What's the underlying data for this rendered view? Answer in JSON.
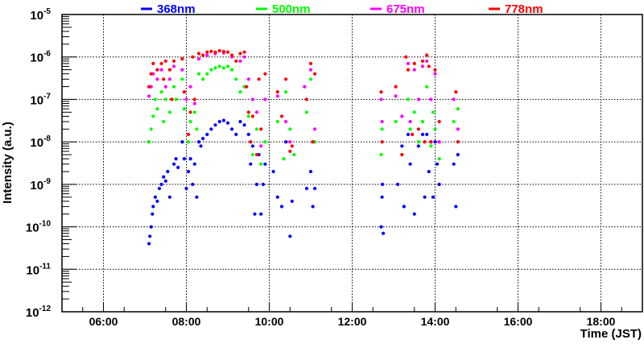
{
  "chart_data": {
    "type": "scatter",
    "title": "",
    "xlabel": "Time (JST)",
    "ylabel": "Intensity (a.u.)",
    "xlim": [
      5,
      19
    ],
    "ylim": [
      1e-12,
      1e-05
    ],
    "yscale": "log",
    "grid": true,
    "legend_placement": "top",
    "x_ticks": [
      {
        "v": 6,
        "label": "06:00"
      },
      {
        "v": 8,
        "label": "08:00"
      },
      {
        "v": 10,
        "label": "10:00"
      },
      {
        "v": 12,
        "label": "12:00"
      },
      {
        "v": 14,
        "label": "14:00"
      },
      {
        "v": 16,
        "label": "16:00"
      },
      {
        "v": 18,
        "label": "18:00"
      }
    ],
    "y_ticks": [
      {
        "exp": -12,
        "base": "10",
        "sup": "-12"
      },
      {
        "exp": -11,
        "base": "10",
        "sup": "-11"
      },
      {
        "exp": -10,
        "base": "10",
        "sup": "-10"
      },
      {
        "exp": -9,
        "base": "10",
        "sup": "-9"
      },
      {
        "exp": -8,
        "base": "10",
        "sup": "-8"
      },
      {
        "exp": -7,
        "base": "10",
        "sup": "-7"
      },
      {
        "exp": -6,
        "base": "10",
        "sup": "-6"
      },
      {
        "exp": -5,
        "base": "10",
        "sup": "-5"
      }
    ],
    "series": [
      {
        "name": "368nm",
        "color": "#0000ff",
        "points": [
          [
            7.1,
            4e-11
          ],
          [
            7.12,
            6e-11
          ],
          [
            7.15,
            1e-10
          ],
          [
            7.18,
            2e-10
          ],
          [
            7.2,
            3e-10
          ],
          [
            7.25,
            5e-10
          ],
          [
            7.3,
            4e-10
          ],
          [
            7.35,
            8e-10
          ],
          [
            7.4,
            1e-09
          ],
          [
            7.45,
            1.5e-09
          ],
          [
            7.5,
            1.2e-09
          ],
          [
            7.55,
            2e-09
          ],
          [
            7.6,
            5e-10
          ],
          [
            7.7,
            3e-09
          ],
          [
            7.75,
            4e-09
          ],
          [
            7.8,
            2.5e-09
          ],
          [
            7.9,
            1e-08
          ],
          [
            7.95,
            4e-09
          ],
          [
            8.0,
            8e-10
          ],
          [
            8.05,
            2e-09
          ],
          [
            8.1,
            4e-09
          ],
          [
            8.15,
            1e-09
          ],
          [
            8.2,
            3e-09
          ],
          [
            8.25,
            5e-10
          ],
          [
            8.3,
            1e-08
          ],
          [
            8.35,
            8e-09
          ],
          [
            8.4,
            1.2e-08
          ],
          [
            8.5,
            1.5e-08
          ],
          [
            8.6,
            2e-08
          ],
          [
            8.7,
            2.5e-08
          ],
          [
            8.8,
            3e-08
          ],
          [
            8.9,
            3.2e-08
          ],
          [
            9.0,
            2.8e-08
          ],
          [
            9.1,
            2e-08
          ],
          [
            9.2,
            1.5e-08
          ],
          [
            9.3,
            3e-08
          ],
          [
            9.4,
            2.5e-08
          ],
          [
            9.5,
            1.5e-08
          ],
          [
            9.55,
            3e-09
          ],
          [
            9.6,
            8e-09
          ],
          [
            9.65,
            2e-10
          ],
          [
            9.7,
            1e-09
          ],
          [
            9.75,
            5e-09
          ],
          [
            9.8,
            2e-10
          ],
          [
            9.85,
            1e-09
          ],
          [
            9.9,
            3e-09
          ],
          [
            10.1,
            2e-09
          ],
          [
            10.2,
            5e-10
          ],
          [
            10.3,
            3e-10
          ],
          [
            10.4,
            1e-08
          ],
          [
            10.5,
            6e-11
          ],
          [
            10.55,
            4e-10
          ],
          [
            10.9,
            8e-10
          ],
          [
            11.0,
            2e-09
          ],
          [
            11.05,
            3e-10
          ],
          [
            11.1,
            8e-10
          ],
          [
            12.7,
            1e-10
          ],
          [
            12.72,
            5e-10
          ],
          [
            12.75,
            7e-11
          ],
          [
            12.73,
            1e-09
          ],
          [
            13.1,
            1e-09
          ],
          [
            13.2,
            8e-09
          ],
          [
            13.25,
            3e-10
          ],
          [
            13.35,
            1.5e-08
          ],
          [
            13.4,
            3e-09
          ],
          [
            13.5,
            2e-10
          ],
          [
            13.6,
            8e-09
          ],
          [
            13.7,
            1.5e-08
          ],
          [
            13.75,
            5e-10
          ],
          [
            13.8,
            1.5e-08
          ],
          [
            13.85,
            2e-09
          ],
          [
            13.9,
            1e-08
          ],
          [
            13.95,
            5e-10
          ],
          [
            14.0,
            1e-08
          ],
          [
            14.05,
            3e-09
          ],
          [
            14.1,
            1e-09
          ],
          [
            14.45,
            3e-09
          ],
          [
            14.5,
            3e-10
          ],
          [
            14.55,
            5e-09
          ]
        ]
      },
      {
        "name": "500nm",
        "color": "#00ff00",
        "points": [
          [
            7.1,
            1e-08
          ],
          [
            7.15,
            2e-08
          ],
          [
            7.2,
            4e-08
          ],
          [
            7.25,
            1e-07
          ],
          [
            7.3,
            6e-08
          ],
          [
            7.4,
            1.5e-07
          ],
          [
            7.45,
            3e-08
          ],
          [
            7.5,
            1e-07
          ],
          [
            7.6,
            5e-08
          ],
          [
            7.7,
            2e-07
          ],
          [
            7.75,
            1e-07
          ],
          [
            7.9,
            3e-07
          ],
          [
            7.95,
            6e-08
          ],
          [
            8.05,
            1e-08
          ],
          [
            8.1,
            3e-08
          ],
          [
            8.2,
            5e-08
          ],
          [
            8.25,
            2e-08
          ],
          [
            8.3,
            4e-07
          ],
          [
            8.4,
            3e-07
          ],
          [
            8.5,
            4e-07
          ],
          [
            8.6,
            5e-07
          ],
          [
            8.7,
            5.5e-07
          ],
          [
            8.8,
            6e-07
          ],
          [
            8.9,
            5.5e-07
          ],
          [
            9.0,
            6e-07
          ],
          [
            9.1,
            5e-07
          ],
          [
            9.2,
            3e-07
          ],
          [
            9.3,
            1.5e-07
          ],
          [
            9.4,
            2e-07
          ],
          [
            9.5,
            4e-08
          ],
          [
            9.6,
            5e-09
          ],
          [
            9.7,
            2e-08
          ],
          [
            9.8,
            3e-09
          ],
          [
            9.9,
            1e-08
          ],
          [
            10.2,
            3e-08
          ],
          [
            10.35,
            4e-09
          ],
          [
            10.4,
            1.5e-07
          ],
          [
            10.5,
            2e-08
          ],
          [
            10.6,
            5e-09
          ],
          [
            10.9,
            5e-08
          ],
          [
            11.0,
            3e-07
          ],
          [
            11.1,
            1e-08
          ],
          [
            12.7,
            5e-09
          ],
          [
            12.72,
            2e-08
          ],
          [
            13.05,
            3e-08
          ],
          [
            13.2,
            5e-09
          ],
          [
            13.35,
            1e-07
          ],
          [
            13.4,
            2e-08
          ],
          [
            13.5,
            5e-08
          ],
          [
            13.6,
            1e-08
          ],
          [
            13.7,
            3e-08
          ],
          [
            13.8,
            2e-07
          ],
          [
            13.9,
            8e-09
          ],
          [
            13.95,
            5e-08
          ],
          [
            14.0,
            2e-08
          ],
          [
            14.1,
            4e-09
          ],
          [
            14.45,
            3e-08
          ],
          [
            14.55,
            6e-08
          ]
        ]
      },
      {
        "name": "675nm",
        "color": "#ff00ff",
        "points": [
          [
            7.1,
            1.2e-07
          ],
          [
            7.15,
            2e-07
          ],
          [
            7.2,
            4e-07
          ],
          [
            7.3,
            3e-07
          ],
          [
            7.4,
            5e-07
          ],
          [
            7.5,
            2e-07
          ],
          [
            7.6,
            3e-07
          ],
          [
            7.7,
            6e-07
          ],
          [
            7.9,
            5e-07
          ],
          [
            8.0,
            1e-07
          ],
          [
            8.1,
            2e-07
          ],
          [
            8.2,
            8e-08
          ],
          [
            8.3,
            9e-07
          ],
          [
            8.5,
            1.1e-06
          ],
          [
            8.7,
            1.2e-06
          ],
          [
            8.9,
            1.25e-06
          ],
          [
            9.1,
            1e-06
          ],
          [
            9.3,
            8e-07
          ],
          [
            9.4,
            1e-06
          ],
          [
            9.5,
            3e-07
          ],
          [
            9.6,
            1e-07
          ],
          [
            9.7,
            5e-08
          ],
          [
            9.8,
            8e-09
          ],
          [
            9.9,
            1e-07
          ],
          [
            10.2,
            1.2e-07
          ],
          [
            10.4,
            3e-08
          ],
          [
            10.5,
            1e-08
          ],
          [
            10.85,
            2e-07
          ],
          [
            11.0,
            5e-07
          ],
          [
            11.1,
            2e-08
          ],
          [
            12.7,
            1e-07
          ],
          [
            12.72,
            3e-08
          ],
          [
            13.05,
            1.2e-07
          ],
          [
            13.2,
            4e-08
          ],
          [
            13.35,
            7e-07
          ],
          [
            13.4,
            3e-08
          ],
          [
            13.5,
            5e-07
          ],
          [
            13.6,
            1e-07
          ],
          [
            13.7,
            6e-07
          ],
          [
            13.8,
            8e-07
          ],
          [
            13.9,
            1e-07
          ],
          [
            14.0,
            4e-07
          ],
          [
            14.1,
            1e-08
          ],
          [
            14.45,
            1e-07
          ],
          [
            14.55,
            2e-08
          ]
        ]
      },
      {
        "name": "778nm",
        "color": "#ff0000",
        "points": [
          [
            7.1,
            2e-07
          ],
          [
            7.15,
            4e-07
          ],
          [
            7.2,
            7e-07
          ],
          [
            7.3,
            5e-07
          ],
          [
            7.4,
            7e-07
          ],
          [
            7.45,
            3e-07
          ],
          [
            7.5,
            8e-07
          ],
          [
            7.6,
            5e-07
          ],
          [
            7.65,
            1e-07
          ],
          [
            7.7,
            8e-07
          ],
          [
            7.9,
            9e-07
          ],
          [
            7.95,
            1.5e-07
          ],
          [
            8.05,
            1.5e-08
          ],
          [
            8.1,
            5e-08
          ],
          [
            8.15,
            1e-06
          ],
          [
            8.2,
            1e-07
          ],
          [
            8.3,
            1.2e-06
          ],
          [
            8.4,
            1.1e-06
          ],
          [
            8.5,
            1.3e-06
          ],
          [
            8.6,
            1.35e-06
          ],
          [
            8.7,
            1.3e-06
          ],
          [
            8.8,
            1.4e-06
          ],
          [
            8.9,
            1.35e-06
          ],
          [
            9.0,
            1.3e-06
          ],
          [
            9.1,
            1.1e-06
          ],
          [
            9.2,
            8e-07
          ],
          [
            9.3,
            1.2e-06
          ],
          [
            9.4,
            1.3e-06
          ],
          [
            9.45,
            2e-07
          ],
          [
            9.5,
            5e-08
          ],
          [
            9.55,
            1e-08
          ],
          [
            9.6,
            4e-08
          ],
          [
            9.7,
            5e-09
          ],
          [
            9.75,
            3e-07
          ],
          [
            9.8,
            2e-08
          ],
          [
            9.9,
            4e-07
          ],
          [
            10.2,
            1.5e-07
          ],
          [
            10.3,
            4e-08
          ],
          [
            10.4,
            3e-07
          ],
          [
            10.5,
            6e-09
          ],
          [
            10.55,
            8e-09
          ],
          [
            10.9,
            1e-07
          ],
          [
            11.0,
            7e-07
          ],
          [
            11.05,
            1e-08
          ],
          [
            11.1,
            4e-07
          ],
          [
            12.7,
            1.5e-07
          ],
          [
            12.72,
            1e-08
          ],
          [
            13.05,
            2e-07
          ],
          [
            13.2,
            5e-09
          ],
          [
            13.3,
            1e-06
          ],
          [
            13.35,
            5e-07
          ],
          [
            13.45,
            1.5e-08
          ],
          [
            13.5,
            7e-07
          ],
          [
            13.6,
            2e-08
          ],
          [
            13.7,
            8e-07
          ],
          [
            13.75,
            1e-08
          ],
          [
            13.8,
            1.1e-06
          ],
          [
            13.85,
            6e-07
          ],
          [
            13.9,
            1e-08
          ],
          [
            14.0,
            5e-07
          ],
          [
            14.1,
            3e-08
          ],
          [
            14.5,
            1.5e-07
          ],
          [
            14.55,
            1e-08
          ]
        ]
      }
    ]
  }
}
